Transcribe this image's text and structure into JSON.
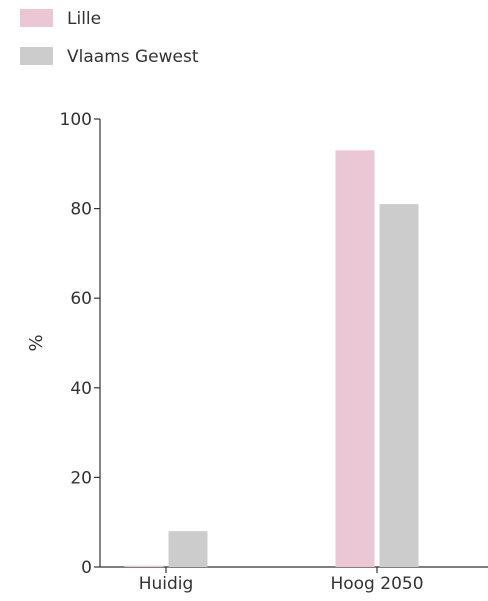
{
  "chart_data": {
    "type": "bar",
    "categories": [
      "Huidig",
      "Hoog 2050"
    ],
    "series": [
      {
        "name": "Lille",
        "values": [
          0.3,
          93
        ],
        "color": "#ebc6d5"
      },
      {
        "name": "Vlaams Gewest",
        "values": [
          8,
          81
        ],
        "color": "#cccccc"
      }
    ],
    "ylabel": "%",
    "ylim": [
      0,
      100
    ],
    "yticks": [
      0,
      20,
      40,
      60,
      80,
      100
    ],
    "legend_position": "top-left",
    "grid": false
  }
}
